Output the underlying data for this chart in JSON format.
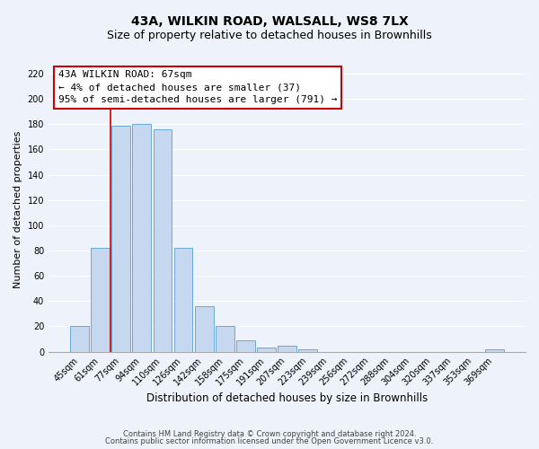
{
  "title": "43A, WILKIN ROAD, WALSALL, WS8 7LX",
  "subtitle": "Size of property relative to detached houses in Brownhills",
  "xlabel": "Distribution of detached houses by size in Brownhills",
  "ylabel": "Number of detached properties",
  "bar_labels": [
    "45sqm",
    "61sqm",
    "77sqm",
    "94sqm",
    "110sqm",
    "126sqm",
    "142sqm",
    "158sqm",
    "175sqm",
    "191sqm",
    "207sqm",
    "223sqm",
    "239sqm",
    "256sqm",
    "272sqm",
    "288sqm",
    "304sqm",
    "320sqm",
    "337sqm",
    "353sqm",
    "369sqm"
  ],
  "bar_values": [
    20,
    82,
    179,
    180,
    176,
    82,
    36,
    20,
    9,
    3,
    5,
    2,
    0,
    0,
    0,
    0,
    0,
    0,
    0,
    0,
    2
  ],
  "bar_color": "#c5d8f0",
  "bar_edge_color": "#6aaad4",
  "vline_x": 1.5,
  "vline_color": "#cc0000",
  "ylim": [
    0,
    225
  ],
  "yticks": [
    0,
    20,
    40,
    60,
    80,
    100,
    120,
    140,
    160,
    180,
    200,
    220
  ],
  "annotation_title": "43A WILKIN ROAD: 67sqm",
  "annotation_line1": "← 4% of detached houses are smaller (37)",
  "annotation_line2": "95% of semi-detached houses are larger (791) →",
  "annotation_box_color": "#ffffff",
  "annotation_box_edge": "#cc0000",
  "footer_line1": "Contains HM Land Registry data © Crown copyright and database right 2024.",
  "footer_line2": "Contains public sector information licensed under the Open Government Licence v3.0.",
  "background_color": "#eef2fb",
  "grid_color": "#ffffff",
  "title_fontsize": 10,
  "subtitle_fontsize": 9,
  "tick_label_fontsize": 7,
  "ylabel_fontsize": 8,
  "xlabel_fontsize": 8.5,
  "footer_fontsize": 6,
  "annotation_fontsize": 8
}
